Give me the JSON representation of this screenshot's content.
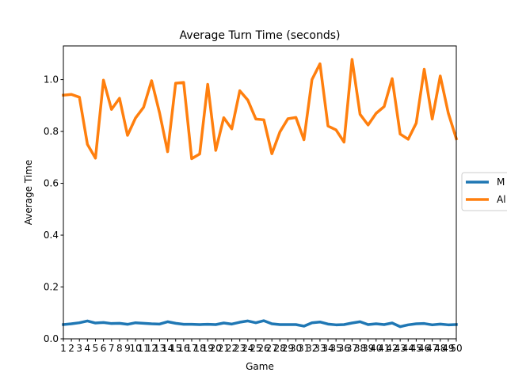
{
  "chart_data": {
    "type": "line",
    "title": "Average Turn Time (seconds)",
    "xlabel": "Game",
    "ylabel": "Average Time",
    "xlim": [
      1,
      50
    ],
    "ylim": [
      0.0,
      1.13
    ],
    "y_ticks": [
      0.0,
      0.2,
      0.4,
      0.6,
      0.8,
      1.0
    ],
    "x_ticks": [
      1,
      2,
      3,
      4,
      5,
      6,
      7,
      8,
      9,
      10,
      11,
      12,
      13,
      14,
      15,
      16,
      17,
      18,
      19,
      20,
      21,
      22,
      23,
      24,
      25,
      26,
      27,
      28,
      29,
      30,
      31,
      32,
      33,
      34,
      35,
      36,
      37,
      38,
      39,
      40,
      41,
      42,
      43,
      44,
      45,
      46,
      47,
      48,
      49,
      50
    ],
    "grid": false,
    "legend_position": "right (clipped at edge)",
    "x": [
      1,
      2,
      3,
      4,
      5,
      6,
      7,
      8,
      9,
      10,
      11,
      12,
      13,
      14,
      15,
      16,
      17,
      18,
      19,
      20,
      21,
      22,
      23,
      24,
      25,
      26,
      27,
      28,
      29,
      30,
      31,
      32,
      33,
      34,
      35,
      36,
      37,
      38,
      39,
      40,
      41,
      42,
      43,
      44,
      45,
      46,
      47,
      48,
      49,
      50
    ],
    "series": [
      {
        "name": "M",
        "color": "#1f77b4",
        "values": [
          0.055,
          0.058,
          0.062,
          0.069,
          0.061,
          0.063,
          0.059,
          0.06,
          0.056,
          0.062,
          0.06,
          0.058,
          0.057,
          0.066,
          0.06,
          0.056,
          0.056,
          0.055,
          0.056,
          0.055,
          0.061,
          0.057,
          0.064,
          0.069,
          0.062,
          0.07,
          0.058,
          0.055,
          0.055,
          0.055,
          0.049,
          0.062,
          0.065,
          0.057,
          0.054,
          0.055,
          0.061,
          0.066,
          0.055,
          0.058,
          0.055,
          0.061,
          0.047,
          0.054,
          0.058,
          0.059,
          0.054,
          0.057,
          0.054,
          0.055
        ]
      },
      {
        "name": "Al",
        "color": "#ff7f0e",
        "values": [
          0.94,
          0.943,
          0.932,
          0.75,
          0.697,
          0.998,
          0.885,
          0.928,
          0.785,
          0.852,
          0.893,
          0.996,
          0.871,
          0.722,
          0.986,
          0.989,
          0.695,
          0.713,
          0.982,
          0.727,
          0.853,
          0.81,
          0.957,
          0.921,
          0.848,
          0.845,
          0.714,
          0.798,
          0.849,
          0.854,
          0.768,
          1.0,
          1.061,
          0.821,
          0.806,
          0.759,
          1.078,
          0.866,
          0.825,
          0.87,
          0.896,
          1.004,
          0.79,
          0.77,
          0.832,
          1.04,
          0.848,
          1.014,
          0.871,
          0.772
        ]
      }
    ]
  }
}
